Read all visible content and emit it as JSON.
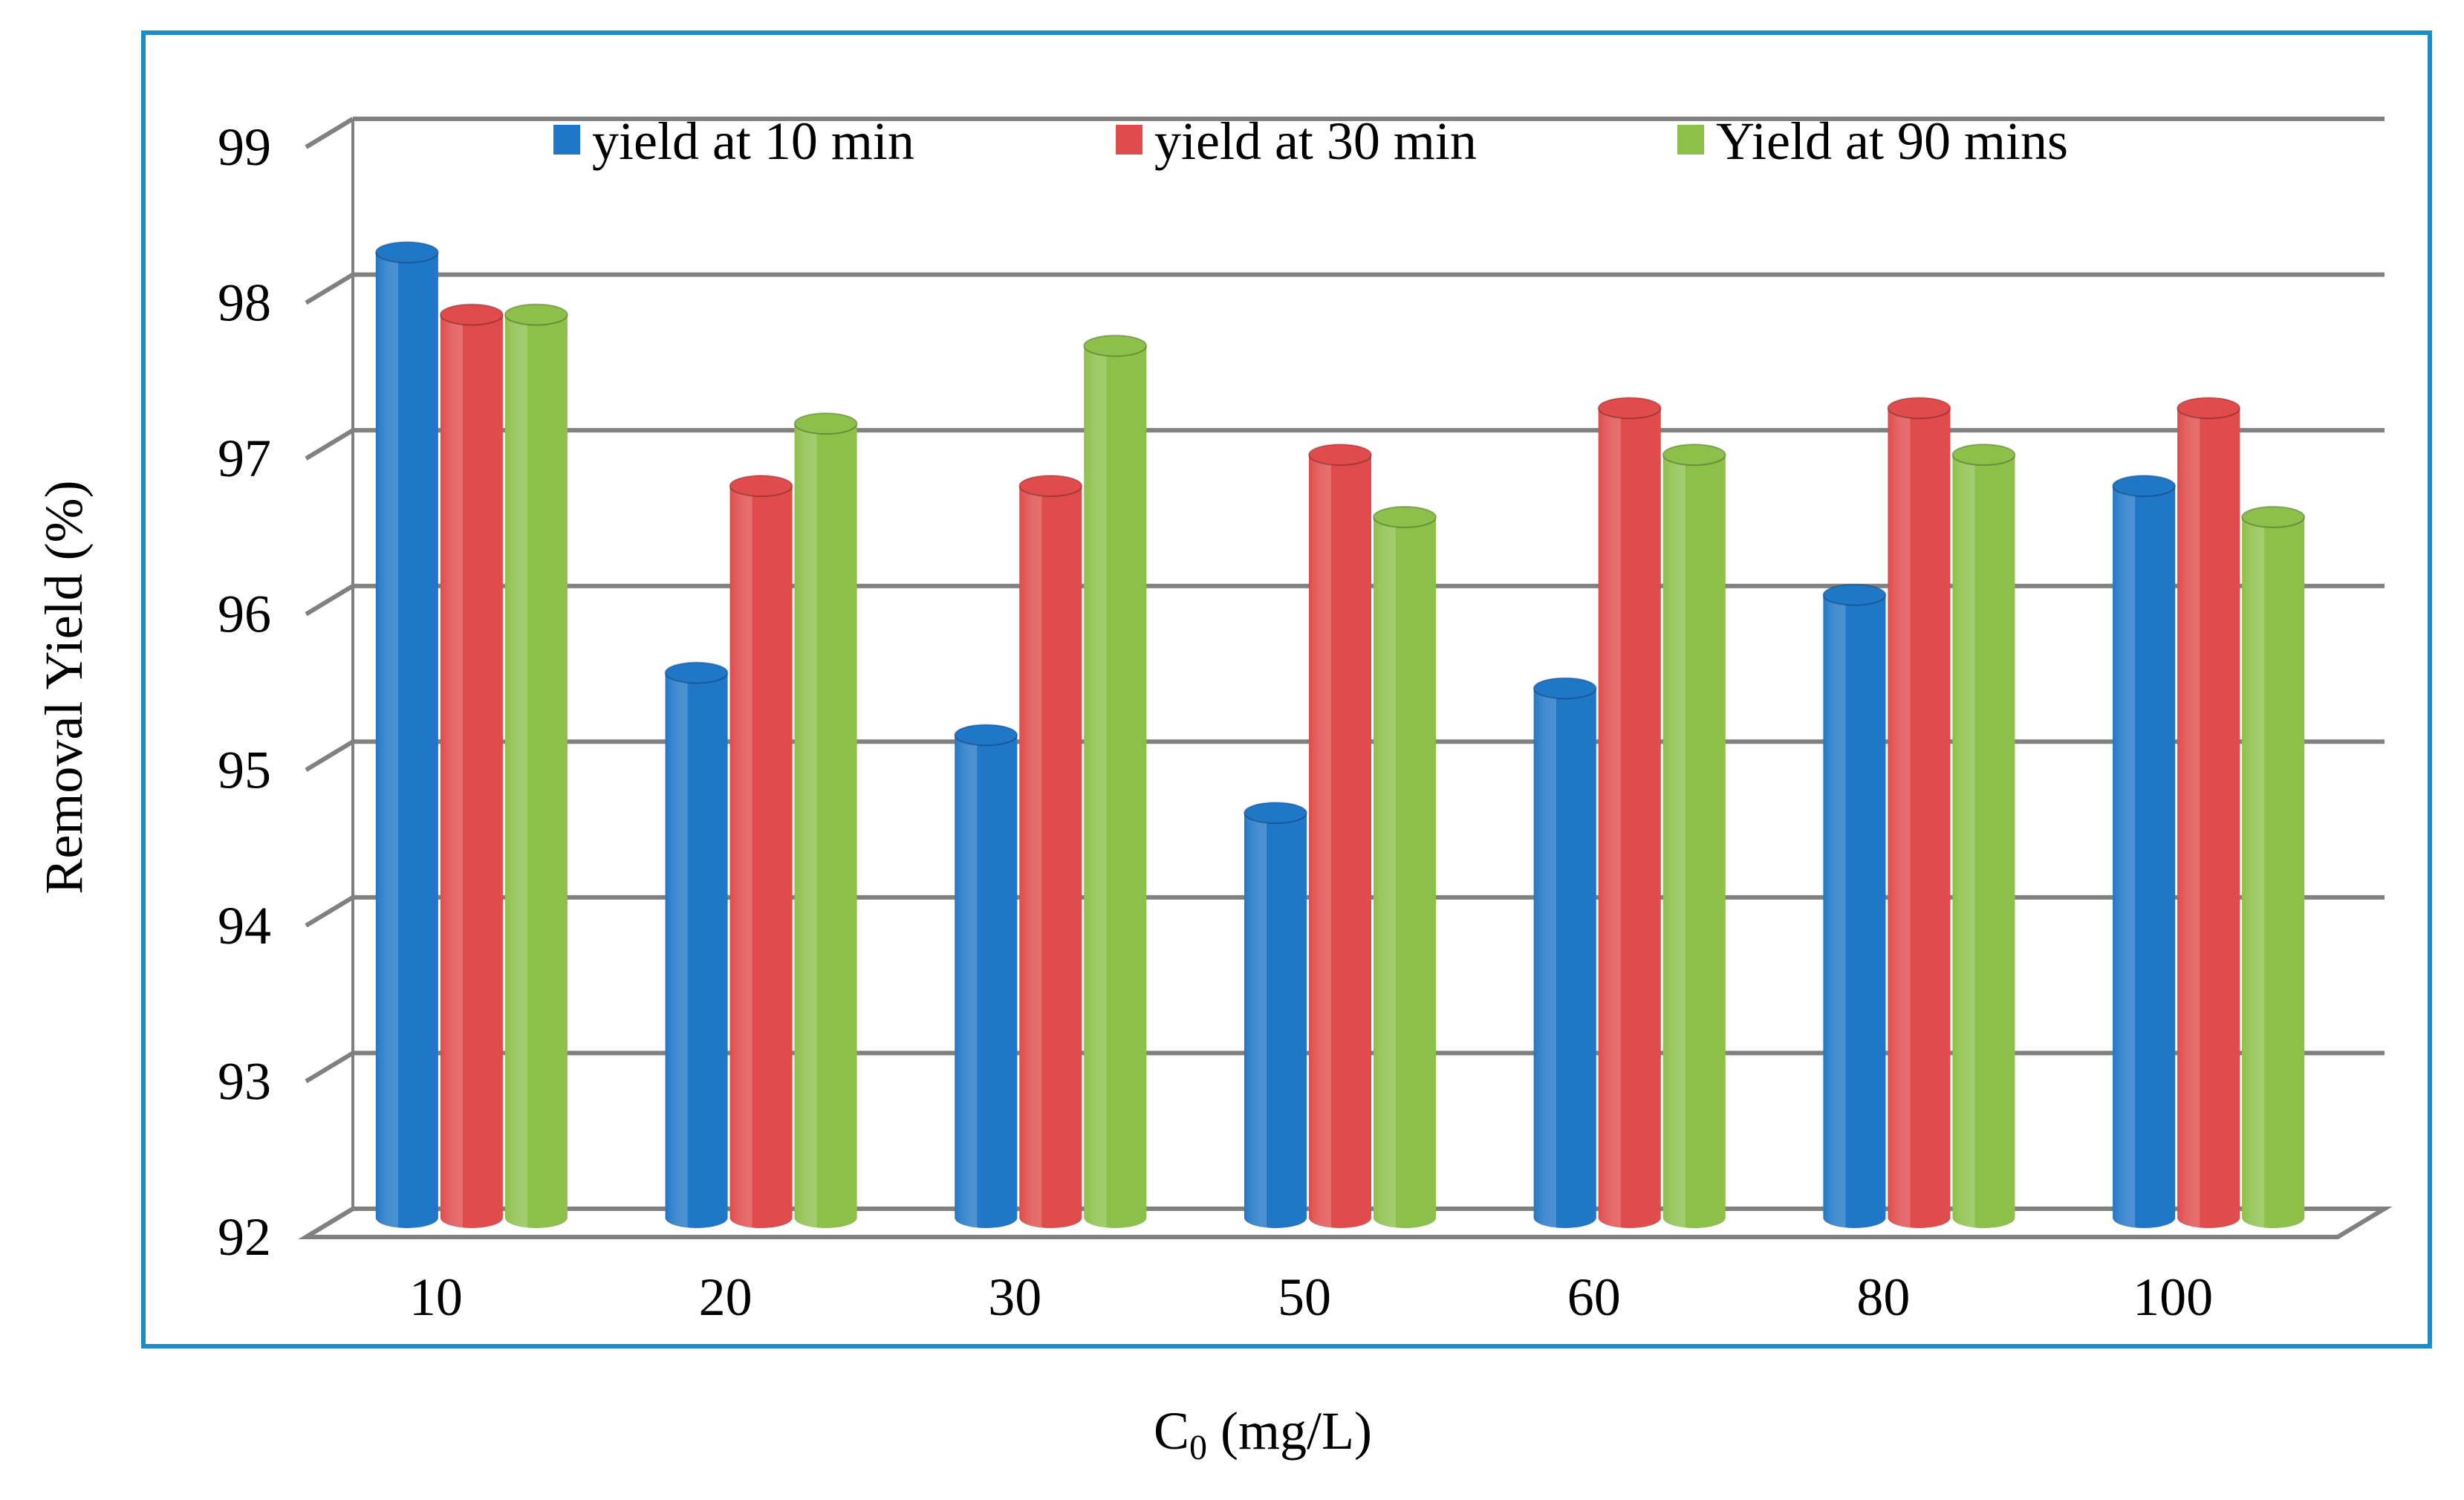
{
  "chart_data": {
    "type": "bar",
    "style": "3d-cylinder",
    "title": "",
    "xlabel": "C",
    "xlabel_subscript": "0",
    "xlabel_unit": " (mg/L)",
    "ylabel": "Removal Yield (%)",
    "ylim": [
      92,
      99
    ],
    "yticks": [
      92,
      93,
      94,
      95,
      96,
      97,
      98,
      99
    ],
    "grid": true,
    "legend_position": "top",
    "categories": [
      "10",
      "20",
      "30",
      "50",
      "60",
      "80",
      "100"
    ],
    "series": [
      {
        "name": "yield at 10 min",
        "color": "#2077C8",
        "values": [
          98.2,
          95.5,
          95.1,
          94.6,
          95.4,
          96.0,
          96.7
        ]
      },
      {
        "name": "yield at 30 min",
        "color": "#E04B4B",
        "values": [
          97.8,
          96.7,
          96.7,
          96.9,
          97.2,
          97.2,
          97.2
        ]
      },
      {
        "name": "Yield at 90 mins",
        "color": "#8DC04A",
        "values": [
          97.8,
          97.1,
          97.6,
          96.5,
          96.9,
          96.9,
          96.5
        ]
      }
    ]
  },
  "colors": {
    "frame": "#1A8CC8",
    "gridline": "#808080"
  }
}
